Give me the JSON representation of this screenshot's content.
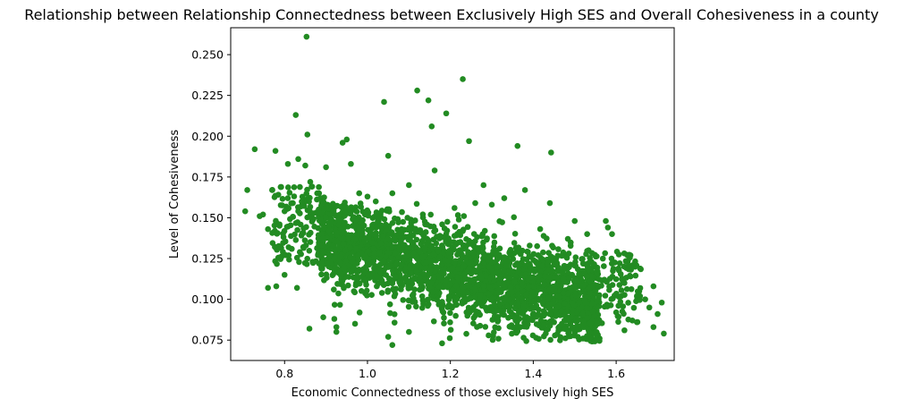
{
  "chart_data": {
    "type": "scatter",
    "title": "Relationship between Relationship Connectedness between Exclusively High SES and Overall Cohesiveness in a county",
    "xlabel": "Economic Connectedness of those exclusively high SES",
    "ylabel": "Level of Cohesiveness",
    "xlim": [
      0.67,
      1.74
    ],
    "ylim": [
      0.0625,
      0.2665
    ],
    "xticks": [
      0.8,
      1.0,
      1.2,
      1.4,
      1.6
    ],
    "xtick_labels": [
      "0.8",
      "1.0",
      "1.2",
      "1.4",
      "1.6"
    ],
    "yticks": [
      0.075,
      0.1,
      0.125,
      0.15,
      0.175,
      0.2,
      0.225,
      0.25
    ],
    "ytick_labels": [
      "0.075",
      "0.100",
      "0.125",
      "0.150",
      "0.175",
      "0.200",
      "0.225",
      "0.250"
    ],
    "grid": false,
    "legend": "none",
    "marker_color": "#228b22",
    "points": [
      [
        0.853,
        0.261
      ],
      [
        1.23,
        0.235
      ],
      [
        1.12,
        0.228
      ],
      [
        1.147,
        0.222
      ],
      [
        1.04,
        0.221
      ],
      [
        1.19,
        0.214
      ],
      [
        0.827,
        0.213
      ],
      [
        1.155,
        0.206
      ],
      [
        0.855,
        0.201
      ],
      [
        0.95,
        0.198
      ],
      [
        1.245,
        0.197
      ],
      [
        0.94,
        0.196
      ],
      [
        1.362,
        0.194
      ],
      [
        0.728,
        0.192
      ],
      [
        0.778,
        0.191
      ],
      [
        1.443,
        0.19
      ],
      [
        0.808,
        0.183
      ],
      [
        1.162,
        0.179
      ],
      [
        1.05,
        0.188
      ],
      [
        0.833,
        0.186
      ],
      [
        0.85,
        0.182
      ],
      [
        0.9,
        0.181
      ],
      [
        0.96,
        0.183
      ],
      [
        0.71,
        0.167
      ],
      [
        0.77,
        0.167
      ],
      [
        0.862,
        0.172
      ],
      [
        1.28,
        0.17
      ],
      [
        1.38,
        0.167
      ],
      [
        1.44,
        0.159
      ],
      [
        0.705,
        0.154
      ],
      [
        0.74,
        0.151
      ],
      [
        0.748,
        0.152
      ],
      [
        0.76,
        0.143
      ],
      [
        0.8,
        0.154
      ],
      [
        0.82,
        0.159
      ],
      [
        0.84,
        0.157
      ],
      [
        0.76,
        0.107
      ],
      [
        0.78,
        0.108
      ],
      [
        0.8,
        0.115
      ],
      [
        0.81,
        0.127
      ],
      [
        0.83,
        0.107
      ],
      [
        0.86,
        0.082
      ],
      [
        0.92,
        0.088
      ],
      [
        0.925,
        0.083
      ],
      [
        0.925,
        0.08
      ],
      [
        0.97,
        0.085
      ],
      [
        1.05,
        0.077
      ],
      [
        1.06,
        0.072
      ],
      [
        1.1,
        0.08
      ],
      [
        1.18,
        0.073
      ],
      [
        1.56,
        0.076
      ],
      [
        1.58,
        0.144
      ],
      [
        1.59,
        0.14
      ],
      [
        1.62,
        0.11
      ],
      [
        1.65,
        0.102
      ],
      [
        1.67,
        0.1
      ],
      [
        1.68,
        0.095
      ],
      [
        1.69,
        0.108
      ],
      [
        1.69,
        0.083
      ],
      [
        1.7,
        0.091
      ],
      [
        1.71,
        0.098
      ],
      [
        1.715,
        0.079
      ],
      [
        1.65,
        0.086
      ],
      [
        1.62,
        0.081
      ],
      [
        1.6,
        0.092
      ],
      [
        1.545,
        0.081
      ],
      [
        1.5,
        0.148
      ],
      [
        1.53,
        0.14
      ],
      [
        1.575,
        0.148
      ],
      [
        1.21,
        0.156
      ],
      [
        1.26,
        0.159
      ],
      [
        1.3,
        0.158
      ],
      [
        1.33,
        0.162
      ],
      [
        1.0,
        0.163
      ],
      [
        1.06,
        0.165
      ],
      [
        1.1,
        0.17
      ],
      [
        0.98,
        0.165
      ],
      [
        1.02,
        0.16
      ]
    ]
  }
}
